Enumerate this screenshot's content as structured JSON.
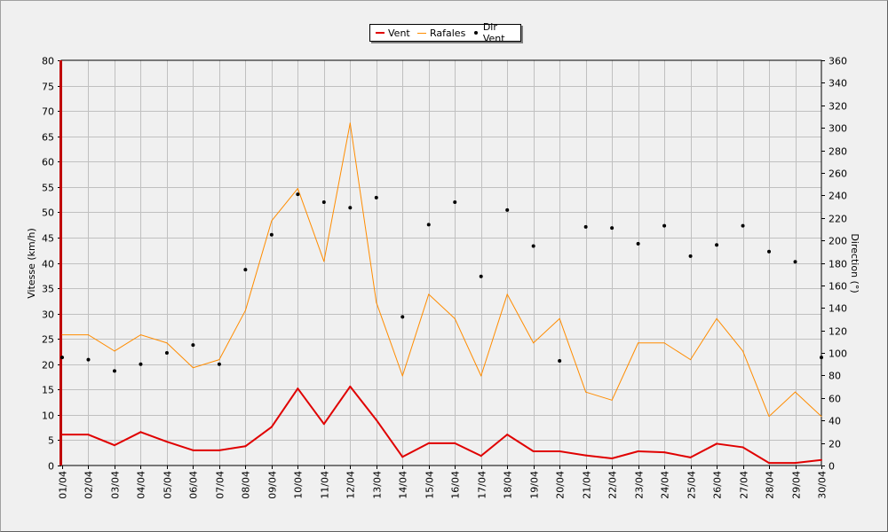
{
  "chart_data": {
    "type": "line",
    "categories": [
      "01/04",
      "02/04",
      "03/04",
      "04/04",
      "05/04",
      "06/04",
      "07/04",
      "08/04",
      "09/04",
      "10/04",
      "11/04",
      "12/04",
      "13/04",
      "14/04",
      "15/04",
      "16/04",
      "17/04",
      "18/04",
      "19/04",
      "20/04",
      "21/04",
      "22/04",
      "23/04",
      "24/04",
      "25/04",
      "26/04",
      "27/04",
      "28/04",
      "29/04",
      "30/04"
    ],
    "ylabel": "Vitesse (km/h)",
    "ylim": [
      0,
      80
    ],
    "yticks": [
      0,
      5,
      10,
      15,
      20,
      25,
      30,
      35,
      40,
      45,
      50,
      55,
      60,
      65,
      70,
      75,
      80
    ],
    "y2label": "Direction (°)",
    "y2lim": [
      0,
      360
    ],
    "y2ticks": [
      0,
      20,
      40,
      60,
      80,
      100,
      120,
      140,
      160,
      180,
      200,
      220,
      240,
      260,
      280,
      300,
      320,
      340,
      360
    ],
    "grid": true,
    "legend_position": "top-center",
    "series": [
      {
        "name": "Vent",
        "axis": "left",
        "color": "#e00000",
        "style": "line",
        "values": [
          6.1,
          6.1,
          4.0,
          6.6,
          4.7,
          3.0,
          3.0,
          3.8,
          7.6,
          15.2,
          8.2,
          15.6,
          9.0,
          1.7,
          4.4,
          4.4,
          1.9,
          6.1,
          2.8,
          2.8,
          2.0,
          1.4,
          2.8,
          2.6,
          1.6,
          4.3,
          3.6,
          0.5,
          0.5,
          1.1
        ]
      },
      {
        "name": "Rafales",
        "axis": "left",
        "color": "#ff8c00",
        "style": "line",
        "values": [
          25.8,
          25.8,
          22.6,
          25.8,
          24.2,
          19.3,
          20.9,
          30.6,
          48.3,
          54.7,
          40.3,
          67.6,
          32.2,
          17.7,
          33.8,
          29.0,
          17.7,
          33.8,
          24.2,
          29.0,
          14.5,
          12.9,
          24.2,
          24.2,
          20.9,
          29.0,
          22.6,
          9.7,
          14.5,
          9.7
        ]
      },
      {
        "name": "Dir Vent",
        "axis": "right",
        "color": "#000000",
        "style": "points",
        "values": [
          96,
          94,
          84,
          90,
          100,
          107,
          90,
          174,
          205,
          241,
          234,
          229,
          238,
          132,
          214,
          234,
          168,
          227,
          195,
          93,
          212,
          211,
          197,
          213,
          186,
          196,
          213,
          190,
          181,
          96
        ]
      }
    ]
  }
}
